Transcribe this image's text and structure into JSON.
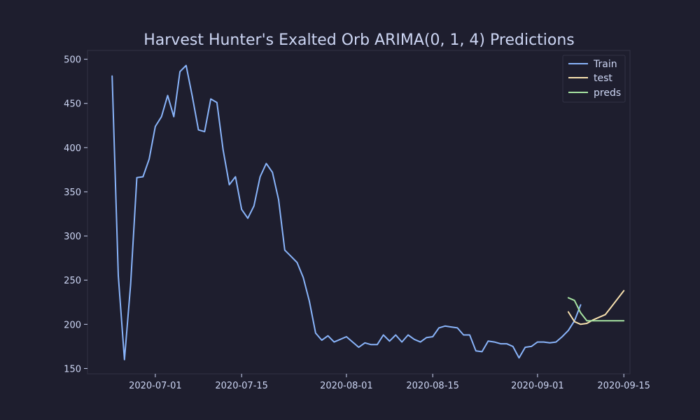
{
  "chart_data": {
    "type": "line",
    "title": "Harvest Hunter's Exalted Orb ARIMA(0, 1, 4) Predictions",
    "xlabel": "",
    "ylabel": "",
    "x_tick_labels": [
      "2020-07-01",
      "2020-07-15",
      "2020-08-01",
      "2020-08-15",
      "2020-09-01",
      "2020-09-15"
    ],
    "y_ticks": [
      150,
      200,
      250,
      300,
      350,
      400,
      450,
      500
    ],
    "xlim": [
      "2020-06-20",
      "2020-09-16"
    ],
    "ylim": [
      144,
      510
    ],
    "grid": false,
    "legend_position": "top-right",
    "series": [
      {
        "name": "Train",
        "color": "#89b4fa",
        "start_date": "2020-06-24",
        "values": [
          481,
          255,
          160,
          245,
          366,
          367,
          387,
          424,
          435,
          459,
          435,
          486,
          493,
          458,
          420,
          418,
          455,
          451,
          397,
          358,
          367,
          330,
          320,
          334,
          367,
          382,
          372,
          341,
          284,
          277,
          270,
          253,
          226,
          190,
          182,
          187,
          180,
          183,
          186,
          180,
          174,
          179,
          177,
          177,
          188,
          181,
          188,
          180,
          188,
          183,
          180,
          185,
          186,
          196,
          198,
          197,
          196,
          188,
          188,
          170,
          169,
          181,
          180,
          178,
          178,
          175,
          162,
          174,
          175,
          180,
          180,
          179,
          180,
          186,
          193,
          204,
          222
        ]
      },
      {
        "name": "test",
        "color": "#f9e2af",
        "start_date": "2020-09-06",
        "values": [
          214,
          203,
          200,
          201,
          205,
          208,
          211,
          220,
          229,
          238
        ]
      },
      {
        "name": "preds",
        "color": "#a6e3a1",
        "start_date": "2020-09-06",
        "values": [
          230,
          227,
          213,
          204,
          204,
          204,
          204,
          204,
          204,
          204
        ]
      }
    ]
  },
  "colors": {
    "background": "#1e1e2e",
    "axes_edge": "#313244",
    "text": "#cdd6f4"
  }
}
